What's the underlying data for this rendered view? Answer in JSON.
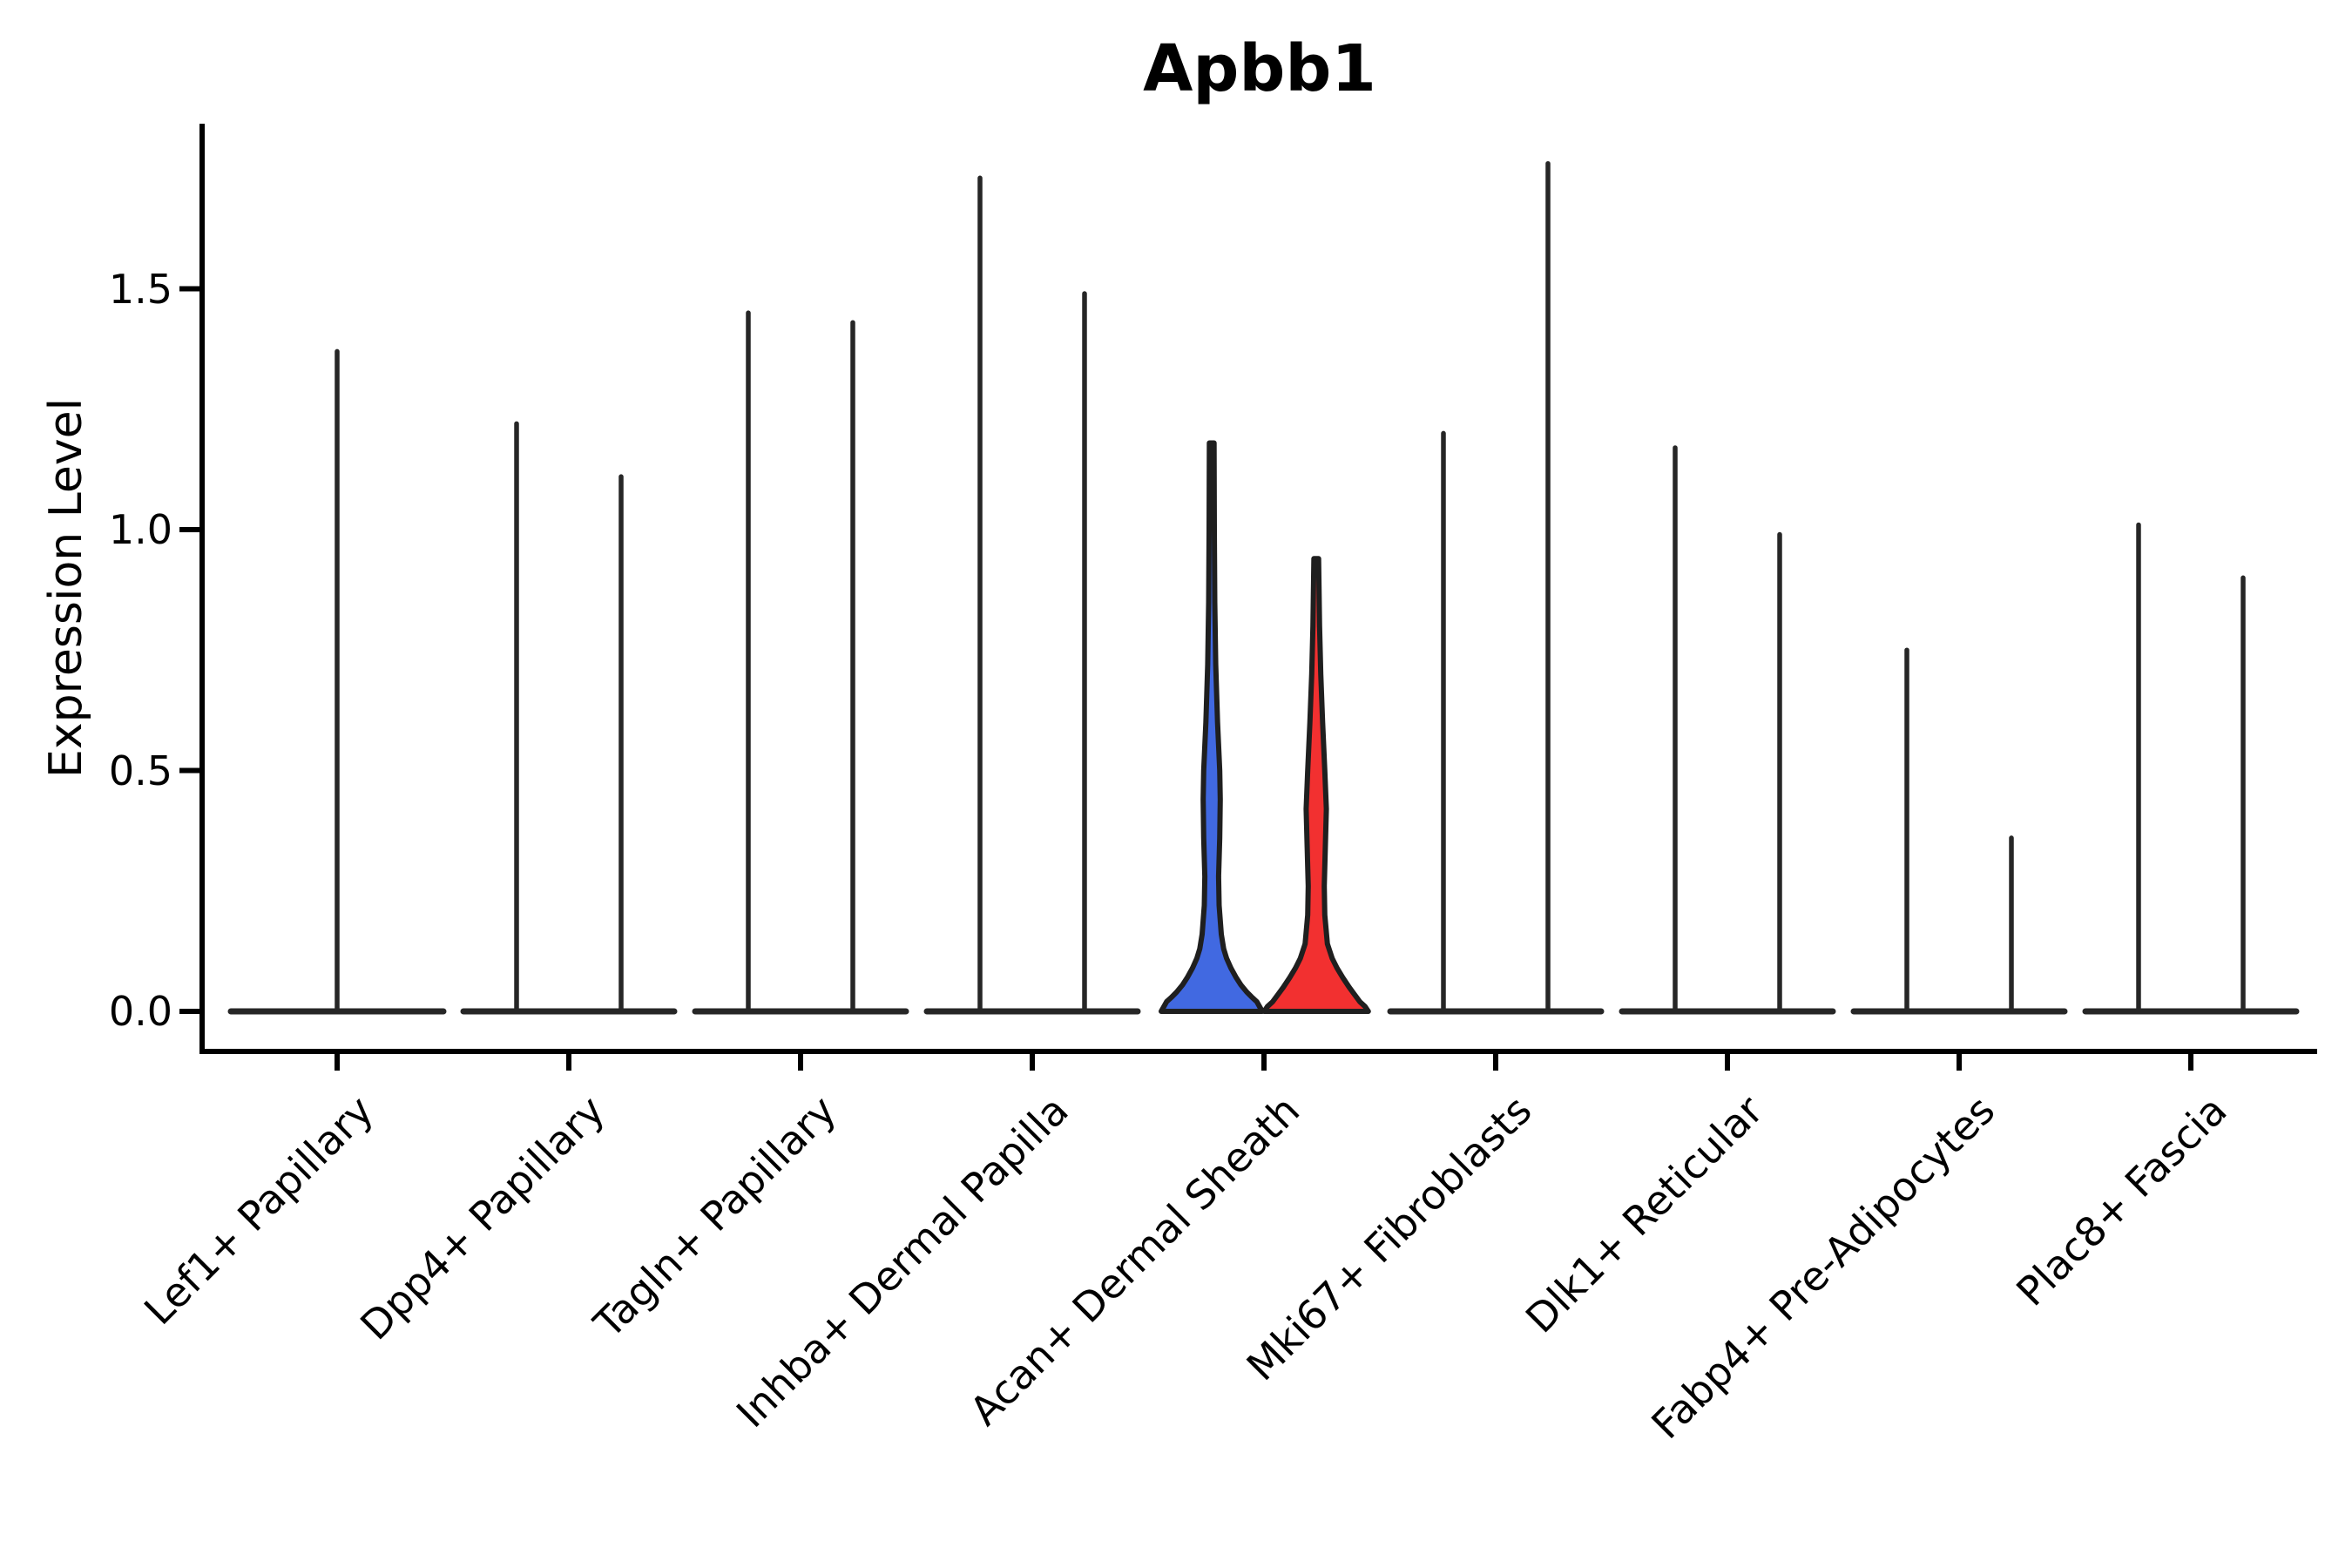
{
  "chart_data": {
    "type": "violin",
    "title": "Apbb1",
    "ylabel": "Expression Level",
    "xlabel": "",
    "yticks": [
      "0.0",
      "0.5",
      "1.0",
      "1.5"
    ],
    "ytick_values": [
      0.0,
      0.5,
      1.0,
      1.5
    ],
    "ylim": [
      -0.08,
      1.84
    ],
    "grid": false,
    "legend": null,
    "categories": [
      "Lef1+ Papillary",
      "Dpp4+ Papillary",
      "Tagln+ Papillary",
      "Inhba+ Dermal Papilla",
      "Acan+ Dermal Sheath",
      "Mki67+ Fibroblasts",
      "Dlk1+ Reticular",
      "Fabp4+ Pre-Adipocytes",
      "Plac8+ Fascia"
    ],
    "groups": [
      {
        "category": "Lef1+ Papillary",
        "violins": [
          {
            "side": "center",
            "shape": "spike",
            "max_expression": 1.37
          }
        ]
      },
      {
        "category": "Dpp4+ Papillary",
        "violins": [
          {
            "side": "left",
            "shape": "spike",
            "max_expression": 1.22
          },
          {
            "side": "right",
            "shape": "spike",
            "max_expression": 1.11
          }
        ]
      },
      {
        "category": "Tagln+ Papillary",
        "violins": [
          {
            "side": "left",
            "shape": "spike",
            "max_expression": 1.45
          },
          {
            "side": "right",
            "shape": "spike",
            "max_expression": 1.43
          }
        ]
      },
      {
        "category": "Inhba+ Dermal Papilla",
        "violins": [
          {
            "side": "left",
            "shape": "spike",
            "max_expression": 1.73
          },
          {
            "side": "right",
            "shape": "spike",
            "max_expression": 1.49
          }
        ]
      },
      {
        "category": "Acan+ Dermal Sheath",
        "violins": [
          {
            "side": "left",
            "shape": "violin",
            "max_expression": 1.18,
            "fill": "#4169E1",
            "density_profile": [
              [
                0.0,
                0.95
              ],
              [
                0.01,
                0.9
              ],
              [
                0.02,
                0.85
              ],
              [
                0.03,
                0.75
              ],
              [
                0.04,
                0.66
              ],
              [
                0.055,
                0.55
              ],
              [
                0.07,
                0.46
              ],
              [
                0.09,
                0.36
              ],
              [
                0.11,
                0.28
              ],
              [
                0.13,
                0.225
              ],
              [
                0.16,
                0.18
              ],
              [
                0.22,
                0.14
              ],
              [
                0.28,
                0.13
              ],
              [
                0.36,
                0.15
              ],
              [
                0.44,
                0.16
              ],
              [
                0.5,
                0.15
              ],
              [
                0.6,
                0.11
              ],
              [
                0.72,
                0.075
              ],
              [
                0.85,
                0.058
              ],
              [
                1.0,
                0.05
              ],
              [
                1.18,
                0.045
              ]
            ]
          },
          {
            "side": "right",
            "shape": "violin",
            "max_expression": 0.94,
            "fill": "#F23030",
            "density_profile": [
              [
                0.0,
                0.98
              ],
              [
                0.01,
                0.92
              ],
              [
                0.02,
                0.82
              ],
              [
                0.035,
                0.72
              ],
              [
                0.05,
                0.62
              ],
              [
                0.07,
                0.5
              ],
              [
                0.09,
                0.39
              ],
              [
                0.11,
                0.3
              ],
              [
                0.14,
                0.21
              ],
              [
                0.2,
                0.16
              ],
              [
                0.26,
                0.15
              ],
              [
                0.34,
                0.17
              ],
              [
                0.42,
                0.19
              ],
              [
                0.5,
                0.16
              ],
              [
                0.6,
                0.12
              ],
              [
                0.7,
                0.085
              ],
              [
                0.8,
                0.062
              ],
              [
                0.94,
                0.045
              ]
            ]
          }
        ]
      },
      {
        "category": "Mki67+ Fibroblasts",
        "violins": [
          {
            "side": "left",
            "shape": "spike",
            "max_expression": 1.2
          },
          {
            "side": "right",
            "shape": "spike",
            "max_expression": 1.76
          }
        ]
      },
      {
        "category": "Dlk1+ Reticular",
        "violins": [
          {
            "side": "left",
            "shape": "spike",
            "max_expression": 1.17
          },
          {
            "side": "right",
            "shape": "spike",
            "max_expression": 0.99
          }
        ]
      },
      {
        "category": "Fabp4+ Pre-Adipocytes",
        "violins": [
          {
            "side": "left",
            "shape": "spike",
            "max_expression": 0.75
          },
          {
            "side": "right",
            "shape": "spike",
            "max_expression": 0.36
          }
        ]
      },
      {
        "category": "Plac8+ Fascia",
        "violins": [
          {
            "side": "left",
            "shape": "spike",
            "max_expression": 1.01
          },
          {
            "side": "right",
            "shape": "spike",
            "max_expression": 0.9
          }
        ]
      }
    ],
    "colors": {
      "split_blue": "#4169E1",
      "split_red": "#F23030",
      "violin_outline": "#1f1f1f",
      "spike_stroke": "#262626",
      "axis": "#000000",
      "text": "#000000"
    }
  }
}
